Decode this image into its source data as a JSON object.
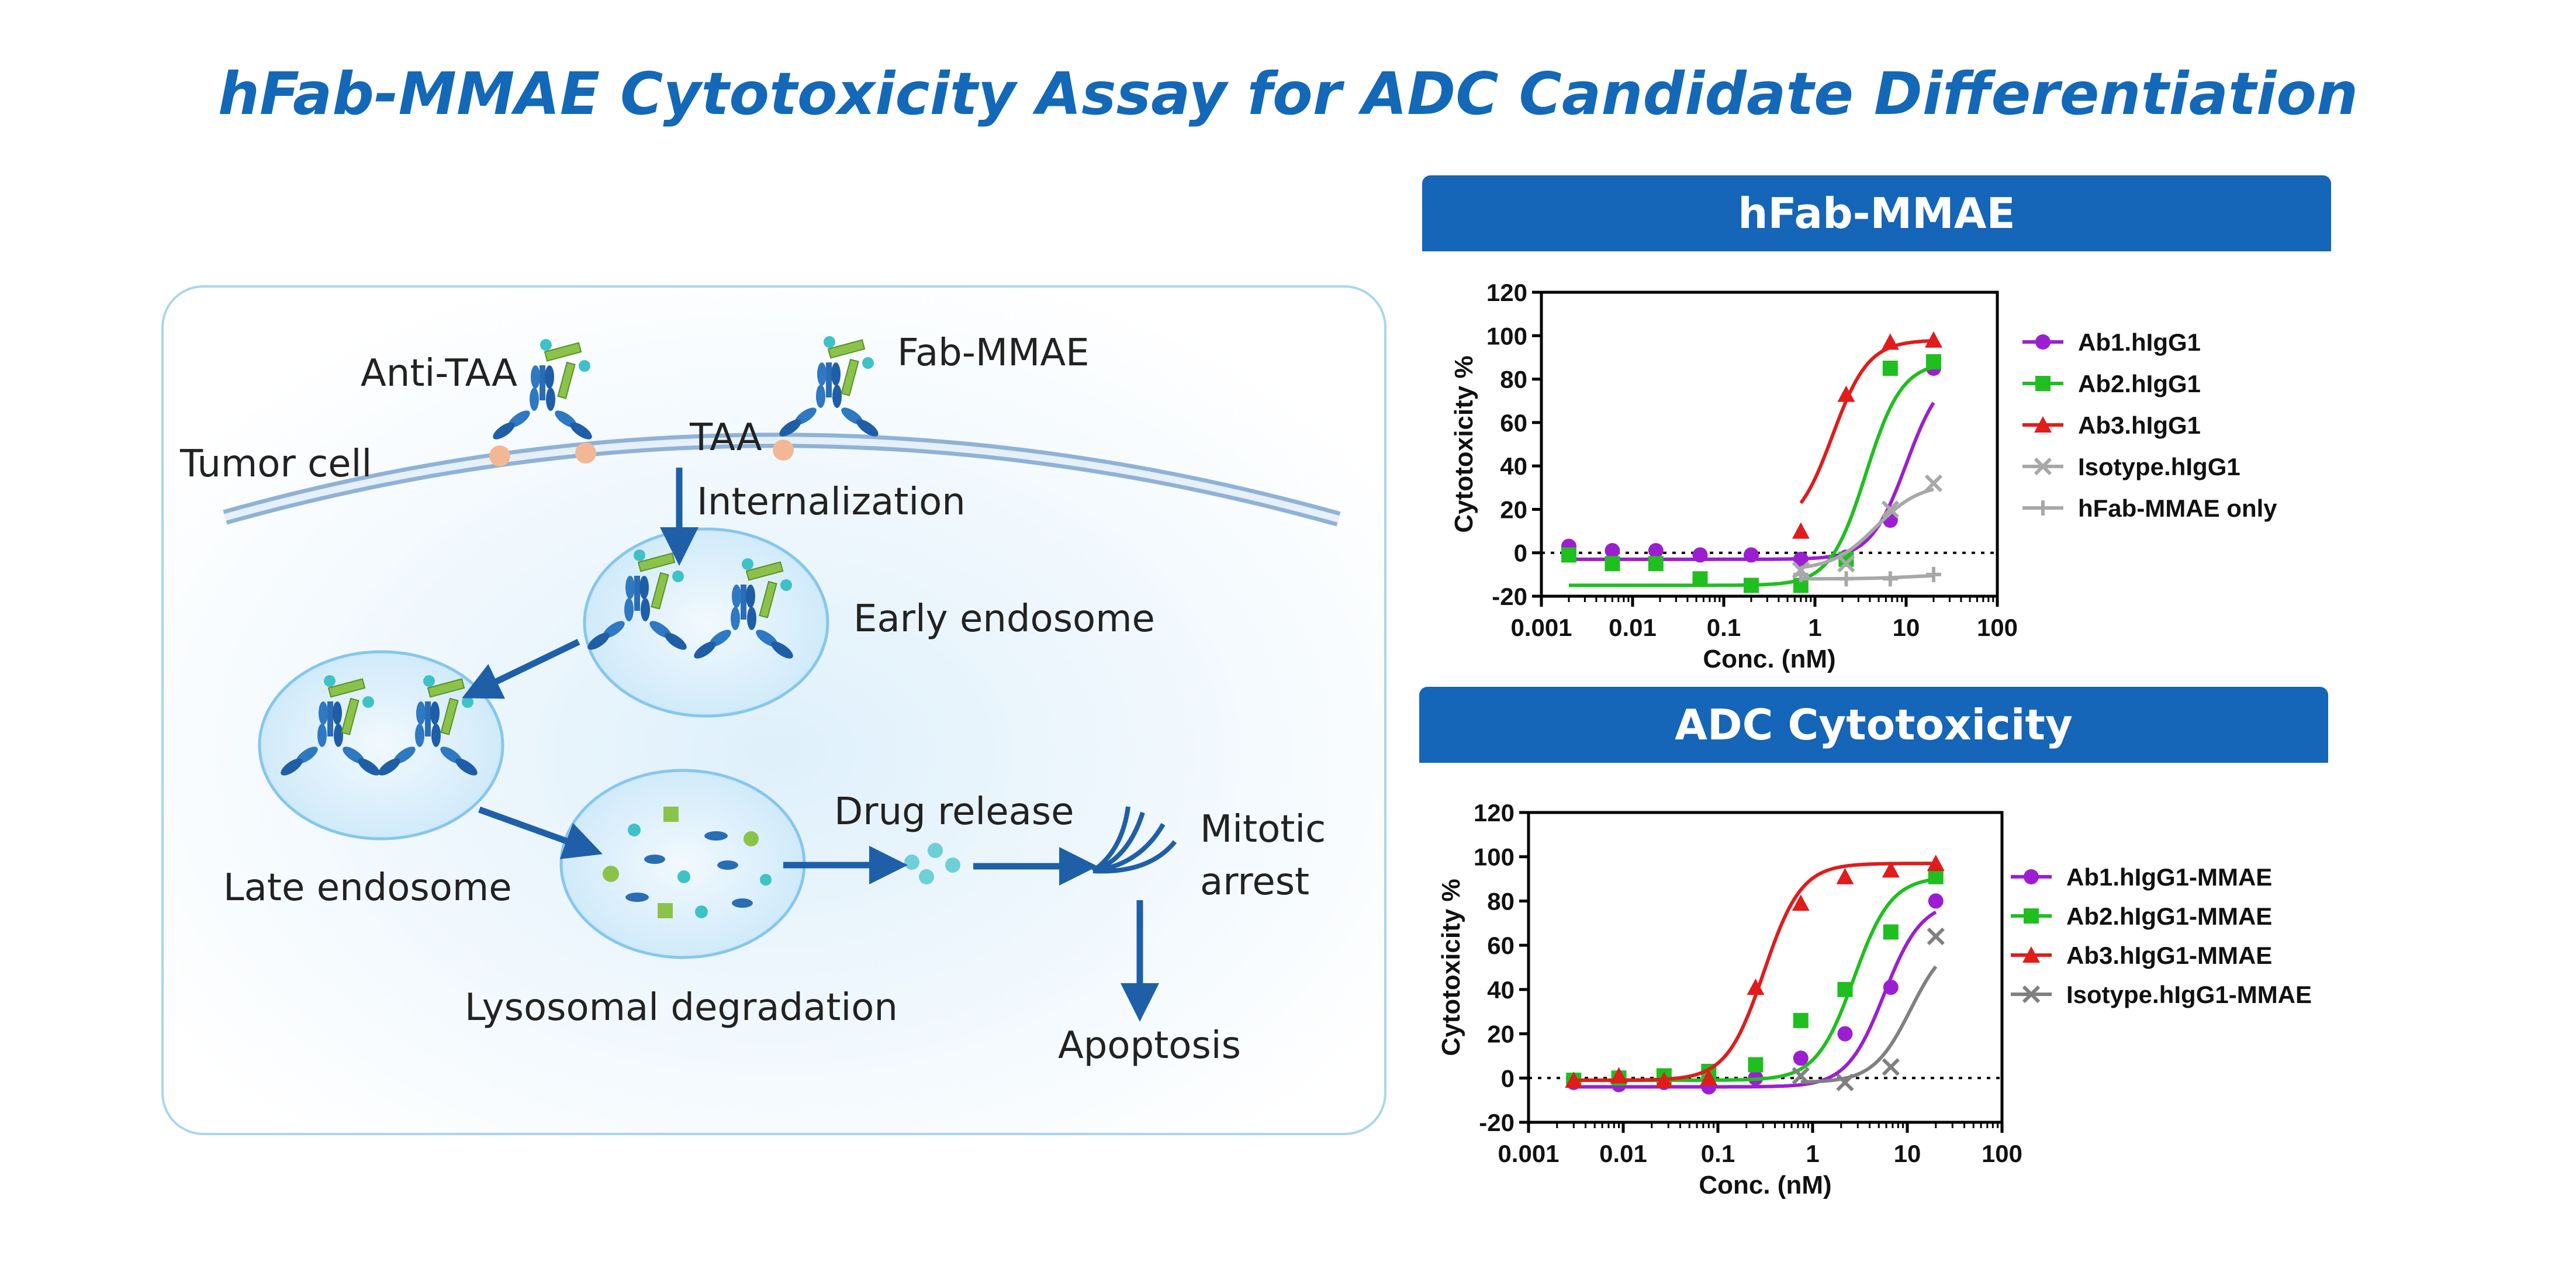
{
  "title": "hFab-MMAE Cytotoxicity Assay for ADC Candidate Differentiation",
  "diagram": {
    "labels": {
      "anti_taa": "Anti-TAA",
      "fab_mmae": "Fab-MMAE",
      "tumor_cell": "Tumor cell",
      "taa": "TAA",
      "internalization": "Internalization",
      "early_endosome": "Early endosome",
      "late_endosome": "Late endosome",
      "lysosomal_degradation": "Lysosomal degradation",
      "drug_release": "Drug release",
      "mitotic": "Mitotic",
      "arrest": "arrest",
      "apoptosis": "Apoptosis"
    }
  },
  "panels": {
    "top_header": "hFab-MMAE",
    "bottom_header": "ADC Cytotoxicity"
  },
  "chart_data": [
    {
      "type": "line",
      "header": "hFab-MMAE",
      "xlabel": "Conc. (nM)",
      "ylabel": "Cytotoxicity %",
      "xscale": "log",
      "xlim": [
        0.001,
        100
      ],
      "ylim": [
        -20,
        120
      ],
      "xticks": [
        "0.001",
        "0.01",
        "0.1",
        "1",
        "10",
        "100"
      ],
      "yticks": [
        "-20",
        "0",
        "20",
        "40",
        "60",
        "80",
        "100",
        "120"
      ],
      "reference_line": 0,
      "legend_position": "right",
      "series": [
        {
          "name": "Ab1.hIgG1",
          "color": "#9b1fd1",
          "marker": "circle",
          "x": [
            0.002,
            0.006,
            0.018,
            0.055,
            0.2,
            0.7,
            2.2,
            6.7,
            20
          ],
          "y": [
            3,
            1,
            1,
            -1,
            -1,
            -3,
            -2,
            15,
            85
          ]
        },
        {
          "name": "Ab2.hIgG1",
          "color": "#1fbf1f",
          "marker": "square",
          "x": [
            0.002,
            0.006,
            0.018,
            0.055,
            0.2,
            0.7,
            2.2,
            6.7,
            20
          ],
          "y": [
            -1,
            -5,
            -5,
            -12,
            -15,
            -15,
            -3,
            85,
            88
          ]
        },
        {
          "name": "Ab3.hIgG1",
          "color": "#e01c1c",
          "marker": "triangle",
          "x": [
            0.7,
            2.2,
            6.7,
            20
          ],
          "y": [
            10,
            73,
            97,
            98
          ]
        },
        {
          "name": "Isotype.hIgG1",
          "color": "#a8a8a8",
          "marker": "x",
          "x": [
            0.7,
            2.2,
            6.7,
            20
          ],
          "y": [
            -8,
            -5,
            20,
            32
          ]
        },
        {
          "name": "hFab-MMAE only",
          "color": "#a8a8a8",
          "marker": "plus",
          "x": [
            0.7,
            2.2,
            6.7,
            20
          ],
          "y": [
            -10,
            -12,
            -12,
            -10
          ]
        }
      ]
    },
    {
      "type": "line",
      "header": "ADC Cytotoxicity",
      "xlabel": "Conc. (nM)",
      "ylabel": "Cytotoxicity %",
      "xscale": "log",
      "xlim": [
        0.001,
        100
      ],
      "ylim": [
        -20,
        120
      ],
      "xticks": [
        "0.001",
        "0.01",
        "0.1",
        "1",
        "10",
        "100"
      ],
      "yticks": [
        "-20",
        "0",
        "20",
        "40",
        "60",
        "80",
        "100",
        "120"
      ],
      "reference_line": 0,
      "legend_position": "right",
      "series": [
        {
          "name": "Ab1.hIgG1-MMAE",
          "color": "#9b1fd1",
          "marker": "circle",
          "x": [
            0.003,
            0.009,
            0.027,
            0.08,
            0.25,
            0.75,
            2.2,
            6.7,
            20
          ],
          "y": [
            -2,
            -3,
            -2,
            -4,
            0,
            9,
            20,
            41,
            80
          ]
        },
        {
          "name": "Ab2.hIgG1-MMAE",
          "color": "#1fbf1f",
          "marker": "square",
          "x": [
            0.003,
            0.009,
            0.027,
            0.08,
            0.25,
            0.75,
            2.2,
            6.7,
            20
          ],
          "y": [
            -1,
            0,
            1,
            3,
            6,
            26,
            40,
            66,
            91
          ]
        },
        {
          "name": "Ab3.hIgG1-MMAE",
          "color": "#e01c1c",
          "marker": "triangle",
          "x": [
            0.003,
            0.009,
            0.027,
            0.08,
            0.25,
            0.75,
            2.2,
            6.7,
            20
          ],
          "y": [
            -1,
            1,
            -1,
            0,
            41,
            79,
            91,
            94,
            97
          ]
        },
        {
          "name": "Isotype.hIgG1-MMAE",
          "color": "#808080",
          "marker": "x",
          "x": [
            0.75,
            2.2,
            6.7,
            20
          ],
          "y": [
            1,
            -2,
            5,
            64
          ]
        }
      ]
    }
  ]
}
